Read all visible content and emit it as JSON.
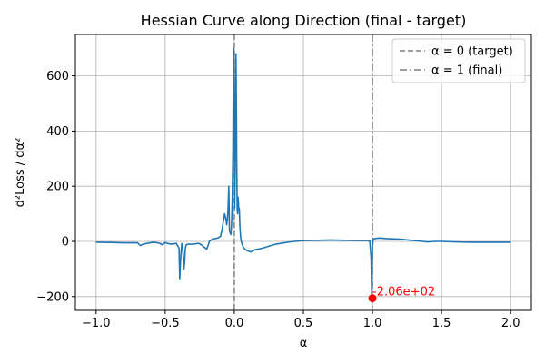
{
  "chart_data": {
    "type": "line",
    "title": "Hessian Curve along Direction (final - target)",
    "xlabel": "α",
    "ylabel": "d²Loss / dα²",
    "xlim": [
      -1.15,
      2.15
    ],
    "ylim": [
      -250,
      750
    ],
    "grid": true,
    "legend_position": "top-right",
    "x_ticks": [
      -1.0,
      -0.5,
      0.0,
      0.5,
      1.0,
      1.5,
      2.0
    ],
    "x_tick_labels": [
      "−1.0",
      "−0.5",
      "0.0",
      "0.5",
      "1.0",
      "1.5",
      "2.0"
    ],
    "y_ticks": [
      -200,
      0,
      200,
      400,
      600
    ],
    "y_tick_labels": [
      "−200",
      "0",
      "200",
      "400",
      "600"
    ],
    "colors": {
      "series": "#1f77b4",
      "vline": "#7f7f7f",
      "marker": "#ff0000",
      "grid": "#b0b0b0"
    },
    "series": [
      {
        "x": [
          -1.0,
          -0.9,
          -0.8,
          -0.7,
          -0.68,
          -0.66,
          -0.62,
          -0.58,
          -0.56,
          -0.54,
          -0.52,
          -0.5,
          -0.48,
          -0.45,
          -0.42,
          -0.4,
          -0.395,
          -0.39,
          -0.385,
          -0.38,
          -0.375,
          -0.37,
          -0.365,
          -0.36,
          -0.355,
          -0.35,
          -0.345,
          -0.34,
          -0.335,
          -0.33,
          -0.3,
          -0.26,
          -0.24,
          -0.22,
          -0.2,
          -0.19,
          -0.18,
          -0.16,
          -0.14,
          -0.12,
          -0.1,
          -0.09,
          -0.08,
          -0.07,
          -0.06,
          -0.055,
          -0.05,
          -0.045,
          -0.04,
          -0.035,
          -0.03,
          -0.025,
          -0.02,
          -0.015,
          -0.01,
          -0.008,
          -0.005,
          -0.003,
          0.0,
          0.003,
          0.006,
          0.009,
          0.012,
          0.015,
          0.018,
          0.021,
          0.024,
          0.027,
          0.03,
          0.033,
          0.036,
          0.04,
          0.045,
          0.05,
          0.06,
          0.07,
          0.08,
          0.1,
          0.12,
          0.15,
          0.2,
          0.3,
          0.4,
          0.5,
          0.6,
          0.7,
          0.8,
          0.9,
          0.95,
          0.98,
          0.99,
          0.995,
          1.0,
          1.005,
          1.01,
          1.02,
          1.05,
          1.1,
          1.2,
          1.3,
          1.4,
          1.45,
          1.5,
          1.6,
          1.7,
          1.8,
          1.9,
          2.0
        ],
        "values": [
          -3,
          -4,
          -5,
          -5,
          -15,
          -10,
          -6,
          -3,
          -5,
          -7,
          -12,
          -4,
          -8,
          -10,
          -7,
          -25,
          -135,
          -80,
          -40,
          -8,
          -15,
          -50,
          -100,
          -80,
          -30,
          -14,
          -12,
          -11,
          -10,
          -10,
          -10,
          -7,
          -12,
          -20,
          -28,
          -15,
          0,
          8,
          10,
          12,
          18,
          40,
          70,
          100,
          80,
          60,
          80,
          120,
          200,
          40,
          30,
          25,
          60,
          150,
          320,
          500,
          700,
          690,
          320,
          120,
          250,
          520,
          680,
          500,
          260,
          120,
          100,
          160,
          140,
          110,
          120,
          60,
          20,
          0,
          -15,
          -25,
          -30,
          -35,
          -38,
          -30,
          -25,
          -10,
          -2,
          3,
          4,
          5,
          4,
          3,
          3,
          2,
          -60,
          -206,
          -20,
          8,
          10,
          10,
          12,
          10,
          8,
          3,
          -2,
          0,
          0,
          -2,
          -3,
          -3,
          -3,
          -3
        ]
      }
    ],
    "vlines": [
      {
        "x": 0.0,
        "label": "α = 0 (target)",
        "style": "dashed"
      },
      {
        "x": 1.0,
        "label": "α = 1 (final)",
        "style": "dashdot"
      }
    ],
    "annotation": {
      "x": 1.0,
      "y": -206,
      "text": "-2.06e+02"
    }
  }
}
